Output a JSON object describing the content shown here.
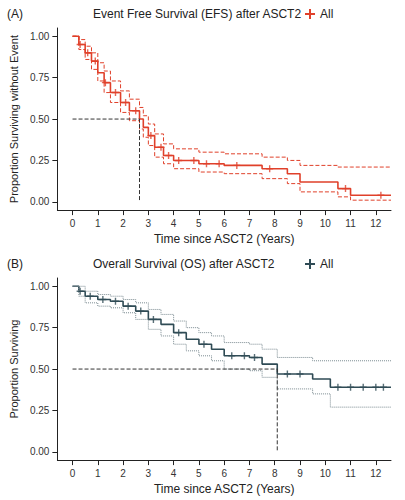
{
  "chart_data": [
    {
      "type": "line",
      "panel_label": "(A)",
      "title": "Event Free Survival (EFS) after ASCT2",
      "x_label": "Time since ASCT2 (Years)",
      "y_label": "Proportion Surviving without Event",
      "xlim": [
        -0.6,
        12.6
      ],
      "xticks": [
        0,
        1,
        2,
        3,
        4,
        5,
        6,
        7,
        8,
        9,
        10,
        11,
        12
      ],
      "ylim": [
        -0.05,
        1.05
      ],
      "yticks": [
        {
          "value": 0,
          "label": "0.00"
        },
        {
          "value": 0.25,
          "label": "0.25"
        },
        {
          "value": 0.5,
          "label": "0.50"
        },
        {
          "value": 0.75,
          "label": "0.75"
        },
        {
          "value": 1,
          "label": "1.00"
        }
      ],
      "grid": false,
      "legend": "top",
      "series": [
        {
          "name": "All",
          "type": "step",
          "color": "#e0402a",
          "line_style": "solid",
          "x": [
            0,
            0.25,
            0.5,
            0.75,
            1.0,
            1.25,
            1.5,
            1.9,
            2.25,
            2.65,
            2.8,
            3.0,
            3.25,
            3.6,
            4.0,
            5.0,
            6.0,
            7.5,
            8.5,
            9.0,
            10.5,
            11.0,
            12.6
          ],
          "values": [
            1,
            0.95,
            0.9,
            0.85,
            0.78,
            0.72,
            0.66,
            0.6,
            0.55,
            0.5,
            0.45,
            0.4,
            0.33,
            0.28,
            0.25,
            0.23,
            0.22,
            0.2,
            0.17,
            0.12,
            0.08,
            0.04,
            0.04
          ]
        },
        {
          "type": "step",
          "color": "#e0402a",
          "line_style": "dashed",
          "x": [
            0,
            0.25,
            0.5,
            0.75,
            1.0,
            1.25,
            1.5,
            1.9,
            2.25,
            2.65,
            2.8,
            3.0,
            3.25,
            3.6,
            4.0,
            5.0,
            6.0,
            7.5,
            8.5,
            9.0,
            10.5,
            11.0,
            12.6
          ],
          "values": [
            1,
            0.98,
            0.94,
            0.9,
            0.84,
            0.79,
            0.73,
            0.67,
            0.62,
            0.57,
            0.52,
            0.47,
            0.41,
            0.35,
            0.32,
            0.3,
            0.29,
            0.27,
            0.25,
            0.22,
            0.21,
            0.21,
            0.21
          ]
        },
        {
          "type": "step",
          "color": "#e0402a",
          "line_style": "dashed",
          "x": [
            0,
            0.25,
            0.5,
            0.75,
            1.0,
            1.25,
            1.5,
            1.9,
            2.25,
            2.65,
            2.8,
            3.0,
            3.25,
            3.6,
            4.0,
            5.0,
            6.0,
            7.5,
            8.5,
            9.0,
            10.5,
            11.0,
            12.6
          ],
          "values": [
            1,
            0.92,
            0.86,
            0.8,
            0.73,
            0.66,
            0.6,
            0.54,
            0.49,
            0.44,
            0.39,
            0.34,
            0.27,
            0.23,
            0.2,
            0.18,
            0.17,
            0.14,
            0.11,
            0.06,
            0.03,
            0.01,
            0.01
          ]
        },
        {
          "type": "scatter",
          "color": "#e0402a",
          "marker": "plus",
          "x": [
            0.3,
            0.6,
            0.9,
            1.3,
            1.7,
            2.1,
            2.5,
            3.1,
            3.5,
            3.8,
            4.2,
            4.8,
            5.3,
            5.8,
            6.5,
            7.8,
            10.8,
            12.2
          ],
          "values": [
            0.95,
            0.9,
            0.85,
            0.72,
            0.66,
            0.6,
            0.55,
            0.4,
            0.33,
            0.28,
            0.25,
            0.25,
            0.23,
            0.23,
            0.22,
            0.2,
            0.08,
            0.04
          ]
        },
        {
          "type": "line",
          "color": "#333333",
          "line_style": "dashed",
          "x": [
            0,
            2.65,
            2.65
          ],
          "values": [
            0.5,
            0.5,
            0
          ]
        }
      ]
    },
    {
      "type": "line",
      "panel_label": "(B)",
      "title": "Overall Survival (OS) after ASCT2",
      "x_label": "Time since ASCT2 (Years)",
      "y_label": "Proportion Surviving",
      "xlim": [
        -0.6,
        12.6
      ],
      "xticks": [
        0,
        1,
        2,
        3,
        4,
        5,
        6,
        7,
        8,
        9,
        10,
        11,
        12
      ],
      "ylim": [
        -0.05,
        1.05
      ],
      "yticks": [
        {
          "value": 0,
          "label": "0.00"
        },
        {
          "value": 0.25,
          "label": "0.25"
        },
        {
          "value": 0.5,
          "label": "0.50"
        },
        {
          "value": 0.75,
          "label": "0.75"
        },
        {
          "value": 1,
          "label": "1.00"
        }
      ],
      "grid": false,
      "legend": "top",
      "series": [
        {
          "name": "All",
          "type": "step",
          "color": "#2f4b55",
          "line_style": "solid",
          "x": [
            0,
            0.25,
            0.5,
            1.0,
            1.5,
            2.0,
            2.5,
            3.0,
            3.5,
            4.0,
            4.5,
            5.0,
            5.5,
            6.0,
            7.0,
            7.5,
            8.1,
            9.5,
            10.2,
            12.6
          ],
          "values": [
            1,
            0.97,
            0.94,
            0.92,
            0.91,
            0.88,
            0.85,
            0.8,
            0.77,
            0.72,
            0.68,
            0.65,
            0.62,
            0.58,
            0.57,
            0.53,
            0.47,
            0.44,
            0.39,
            0.39
          ]
        },
        {
          "type": "step",
          "color": "#7a8a90",
          "line_style": "dotted",
          "x": [
            0,
            0.25,
            0.5,
            1.0,
            1.5,
            2.0,
            2.5,
            3.0,
            3.5,
            4.0,
            4.5,
            5.0,
            5.5,
            6.0,
            7.0,
            7.5,
            8.1,
            9.5,
            10.2,
            12.6
          ],
          "values": [
            1,
            1,
            0.97,
            0.95,
            0.94,
            0.92,
            0.9,
            0.86,
            0.83,
            0.79,
            0.75,
            0.72,
            0.7,
            0.66,
            0.65,
            0.62,
            0.57,
            0.55,
            0.55,
            0.55
          ]
        },
        {
          "type": "step",
          "color": "#7a8a90",
          "line_style": "dotted",
          "x": [
            0,
            0.25,
            0.5,
            1.0,
            1.5,
            2.0,
            2.5,
            3.0,
            3.5,
            4.0,
            4.5,
            5.0,
            5.5,
            6.0,
            7.0,
            7.5,
            8.1,
            9.5,
            10.2,
            12.6
          ],
          "values": [
            1,
            0.94,
            0.9,
            0.88,
            0.87,
            0.84,
            0.8,
            0.74,
            0.7,
            0.65,
            0.61,
            0.58,
            0.55,
            0.5,
            0.49,
            0.45,
            0.38,
            0.35,
            0.27,
            0.27
          ]
        },
        {
          "type": "scatter",
          "color": "#2f4b55",
          "marker": "plus",
          "x": [
            0.3,
            0.7,
            1.2,
            1.7,
            2.2,
            2.7,
            3.2,
            4.2,
            5.2,
            6.3,
            6.8,
            7.2,
            8.5,
            9.0,
            10.5,
            11.0,
            11.5,
            12.0,
            12.3
          ],
          "values": [
            0.97,
            0.94,
            0.92,
            0.91,
            0.88,
            0.85,
            0.8,
            0.72,
            0.65,
            0.58,
            0.58,
            0.57,
            0.47,
            0.47,
            0.39,
            0.39,
            0.39,
            0.39,
            0.39
          ]
        },
        {
          "type": "line",
          "color": "#333333",
          "line_style": "dashed",
          "x": [
            0,
            8.1,
            8.1
          ],
          "values": [
            0.5,
            0.5,
            0
          ]
        }
      ]
    }
  ]
}
